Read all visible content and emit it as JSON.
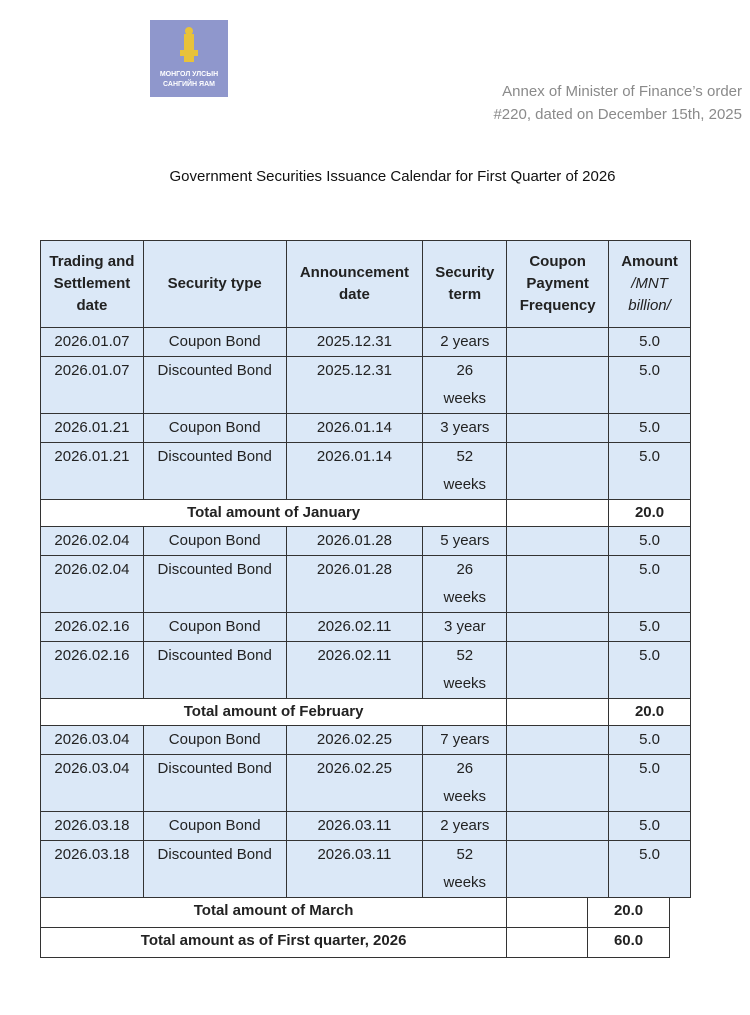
{
  "header": {
    "logo": [
      "МОНГОЛ УЛСЫН",
      "САНГИЙН ЯАМ"
    ],
    "annex": [
      "Annex of Minister of Finance’s order",
      "#220, dated on December 15th, 2025"
    ]
  },
  "title": "Government Securities Issuance Calendar for First Quarter of 2026",
  "table": {
    "columns": [
      "Trading and Settlement date",
      "Security type",
      "Announcement date",
      "Security term",
      "Coupon Payment Frequency",
      "Amount"
    ],
    "amount_unit": "/MNT billion/",
    "sections": [
      {
        "rows": [
          {
            "settlement": "2026.01.07",
            "type": "Coupon Bond",
            "announcement": "2025.12.31",
            "term": "2 years",
            "amount": "5.0"
          },
          {
            "settlement": "2026.01.07",
            "type": "Discounted Bond",
            "announcement": "2025.12.31",
            "term": "26 weeks",
            "amount": "5.0"
          },
          {
            "settlement": "2026.01.21",
            "type": "Coupon Bond",
            "announcement": "2026.01.14",
            "term": "3 years",
            "amount": "5.0"
          },
          {
            "settlement": "2026.01.21",
            "type": "Discounted Bond",
            "announcement": "2026.01.14",
            "term": "52 weeks",
            "amount": "5.0"
          }
        ],
        "total_label": "Total amount of January",
        "total": "20.0"
      },
      {
        "rows": [
          {
            "settlement": "2026.02.04",
            "type": "Coupon Bond",
            "announcement": "2026.01.28",
            "term": "5 years",
            "amount": "5.0"
          },
          {
            "settlement": "2026.02.04",
            "type": "Discounted Bond",
            "announcement": "2026.01.28",
            "term": "26 weeks",
            "amount": "5.0"
          },
          {
            "settlement": "2026.02.16",
            "type": "Coupon Bond",
            "announcement": "2026.02.11",
            "term": "3 year",
            "amount": "5.0"
          },
          {
            "settlement": "2026.02.16",
            "type": "Discounted Bond",
            "announcement": "2026.02.11",
            "term": "52 weeks",
            "amount": "5.0"
          }
        ],
        "total_label": "Total amount of February",
        "total": "20.0"
      },
      {
        "rows": [
          {
            "settlement": "2026.03.04",
            "type": "Coupon Bond",
            "announcement": "2026.02.25",
            "term": "7 years",
            "amount": "5.0"
          },
          {
            "settlement": "2026.03.04",
            "type": "Discounted Bond",
            "announcement": "2026.02.25",
            "term": "26 weeks",
            "amount": "5.0"
          },
          {
            "settlement": "2026.03.18",
            "type": "Coupon Bond",
            "announcement": "2026.03.11",
            "term": "2 years",
            "amount": "5.0"
          },
          {
            "settlement": "2026.03.18",
            "type": "Discounted Bond",
            "announcement": "2026.03.11",
            "term": "52 weeks",
            "amount": "5.0"
          }
        ],
        "total_label": "Total amount of March",
        "total": "20.0"
      }
    ],
    "grand_total": {
      "label": "Total amount as of First quarter, 2026",
      "amount": "60.0"
    }
  }
}
